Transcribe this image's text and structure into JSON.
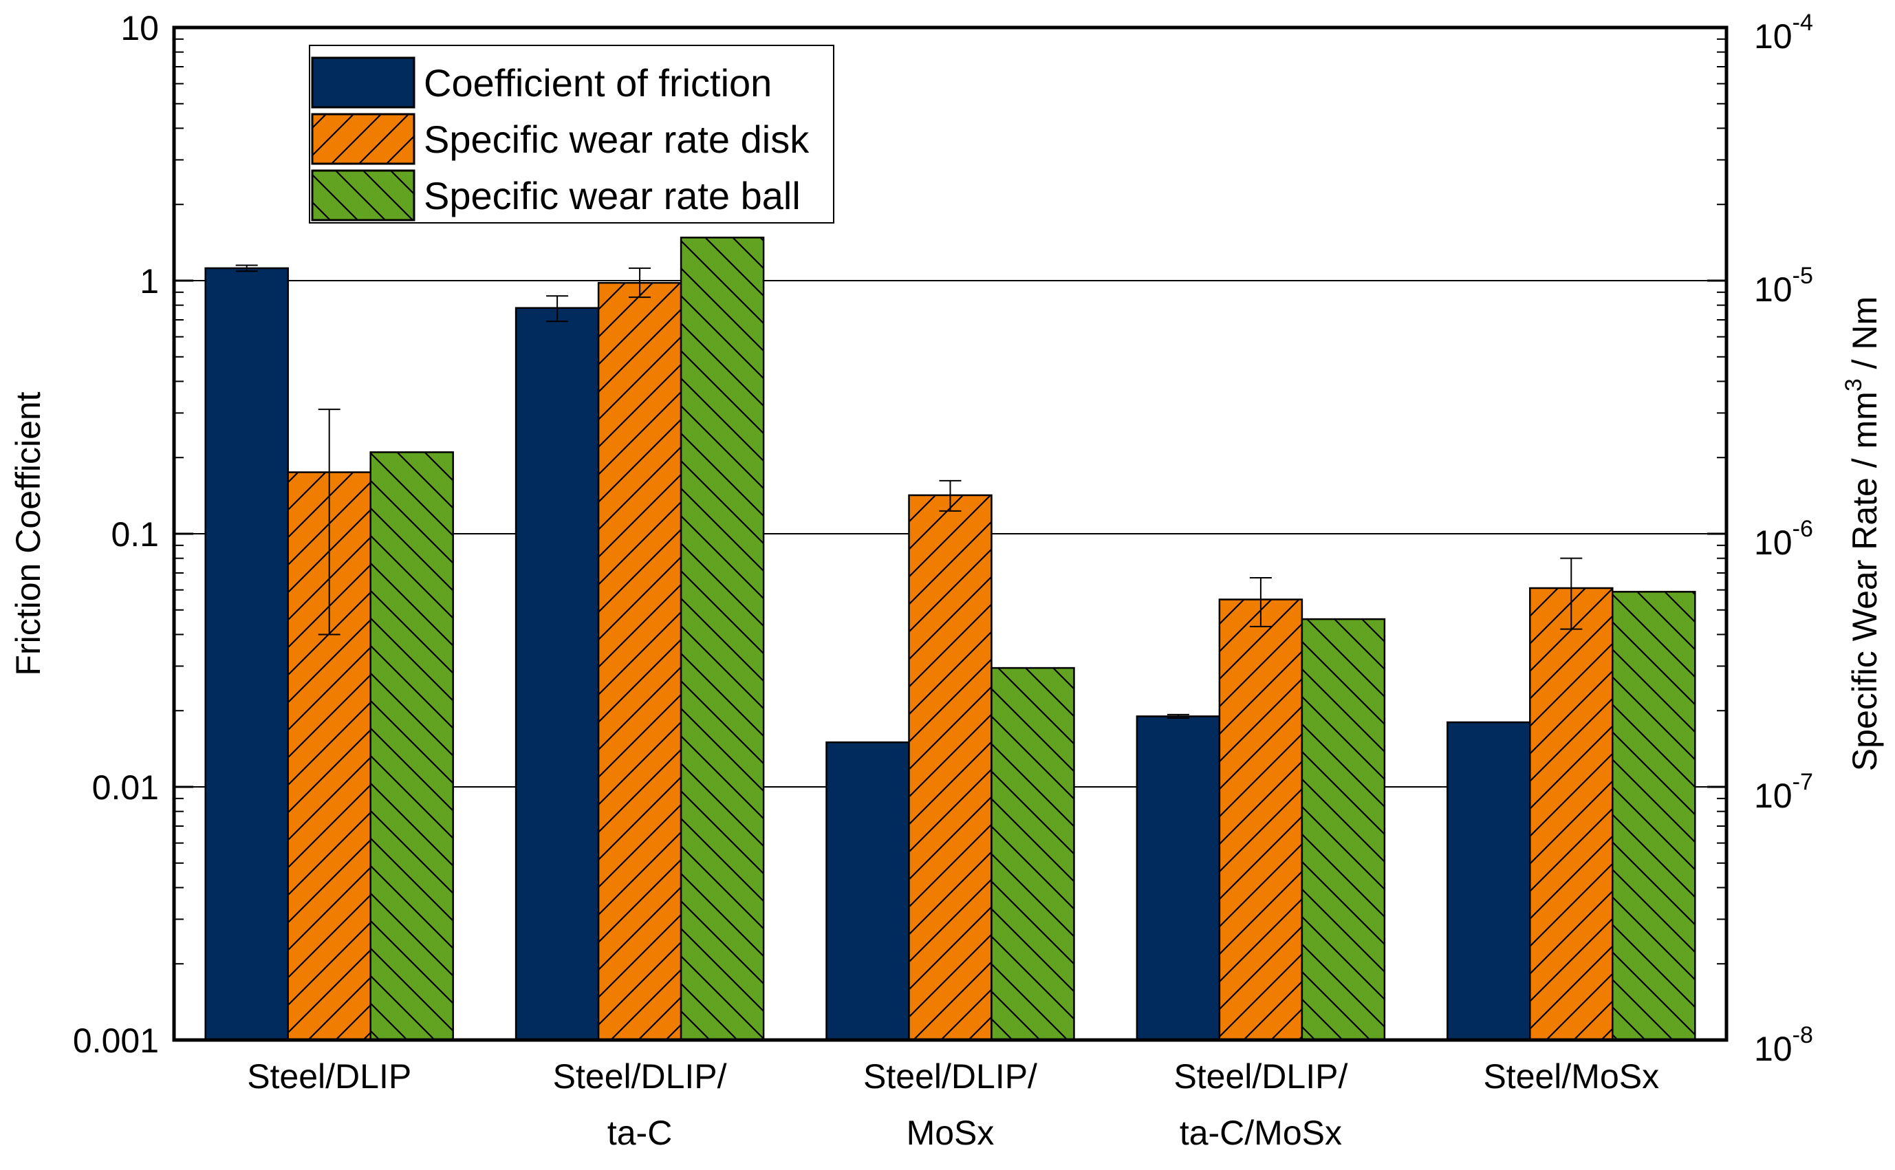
{
  "chart_data": {
    "type": "bar",
    "title": "",
    "categories": [
      [
        "Steel/DLIP"
      ],
      [
        "Steel/DLIP/",
        "ta-C"
      ],
      [
        "Steel/DLIP/",
        "MoSx"
      ],
      [
        "Steel/DLIP/",
        "ta-C/MoSx"
      ],
      [
        "Steel/MoSx"
      ]
    ],
    "left_axis": {
      "label": "Friction Coefficient",
      "scale": "log",
      "ylim": [
        0.001,
        10
      ],
      "ticks": [
        {
          "value": 0.001,
          "label": "0.001"
        },
        {
          "value": 0.01,
          "label": "0.01"
        },
        {
          "value": 0.1,
          "label": "0.1"
        },
        {
          "value": 1,
          "label": "1"
        },
        {
          "value": 10,
          "label": "10"
        }
      ]
    },
    "right_axis": {
      "label": "Specific Wear Rate / mm",
      "label_superscript": "3",
      "label_suffix": " / Nm",
      "scale": "log",
      "ylim": [
        1e-08,
        0.0001
      ],
      "ticks": [
        {
          "value": 1e-08,
          "base": "10",
          "exp": "-8"
        },
        {
          "value": 1e-07,
          "base": "10",
          "exp": "-7"
        },
        {
          "value": 1e-06,
          "base": "10",
          "exp": "-6"
        },
        {
          "value": 1e-05,
          "base": "10",
          "exp": "-5"
        },
        {
          "value": 0.0001,
          "base": "10",
          "exp": "-4"
        }
      ]
    },
    "gridlines": [
      0.01,
      0.1,
      1
    ],
    "series": [
      {
        "name": "Coefficient of friction",
        "axis": "left",
        "color": "#002b5c",
        "pattern": "solid",
        "values": [
          1.12,
          0.78,
          0.015,
          0.019,
          0.018
        ],
        "errors": [
          [
            1.09,
            1.15
          ],
          [
            0.69,
            0.87
          ],
          null,
          [
            0.0187,
            0.0193
          ],
          null
        ]
      },
      {
        "name": "Specific wear rate disk",
        "axis": "right",
        "color": "#f07d00",
        "pattern": "diag-up",
        "values": [
          1.75e-06,
          9.8e-06,
          1.42e-06,
          5.5e-07,
          6.1e-07
        ],
        "errors": [
          [
            4e-07,
            3.1e-06
          ],
          [
            8.6e-06,
            1.12e-05
          ],
          [
            1.23e-06,
            1.62e-06
          ],
          [
            4.3e-07,
            6.7e-07
          ],
          [
            4.2e-07,
            8e-07
          ]
        ]
      },
      {
        "name": "Specific wear rate ball",
        "axis": "right",
        "color": "#62a421",
        "pattern": "diag-down",
        "values": [
          2.1e-06,
          1.48e-05,
          2.95e-07,
          4.6e-07,
          5.9e-07
        ],
        "errors": [
          null,
          null,
          null,
          null,
          null
        ]
      }
    ],
    "legend_position": "top-left"
  }
}
